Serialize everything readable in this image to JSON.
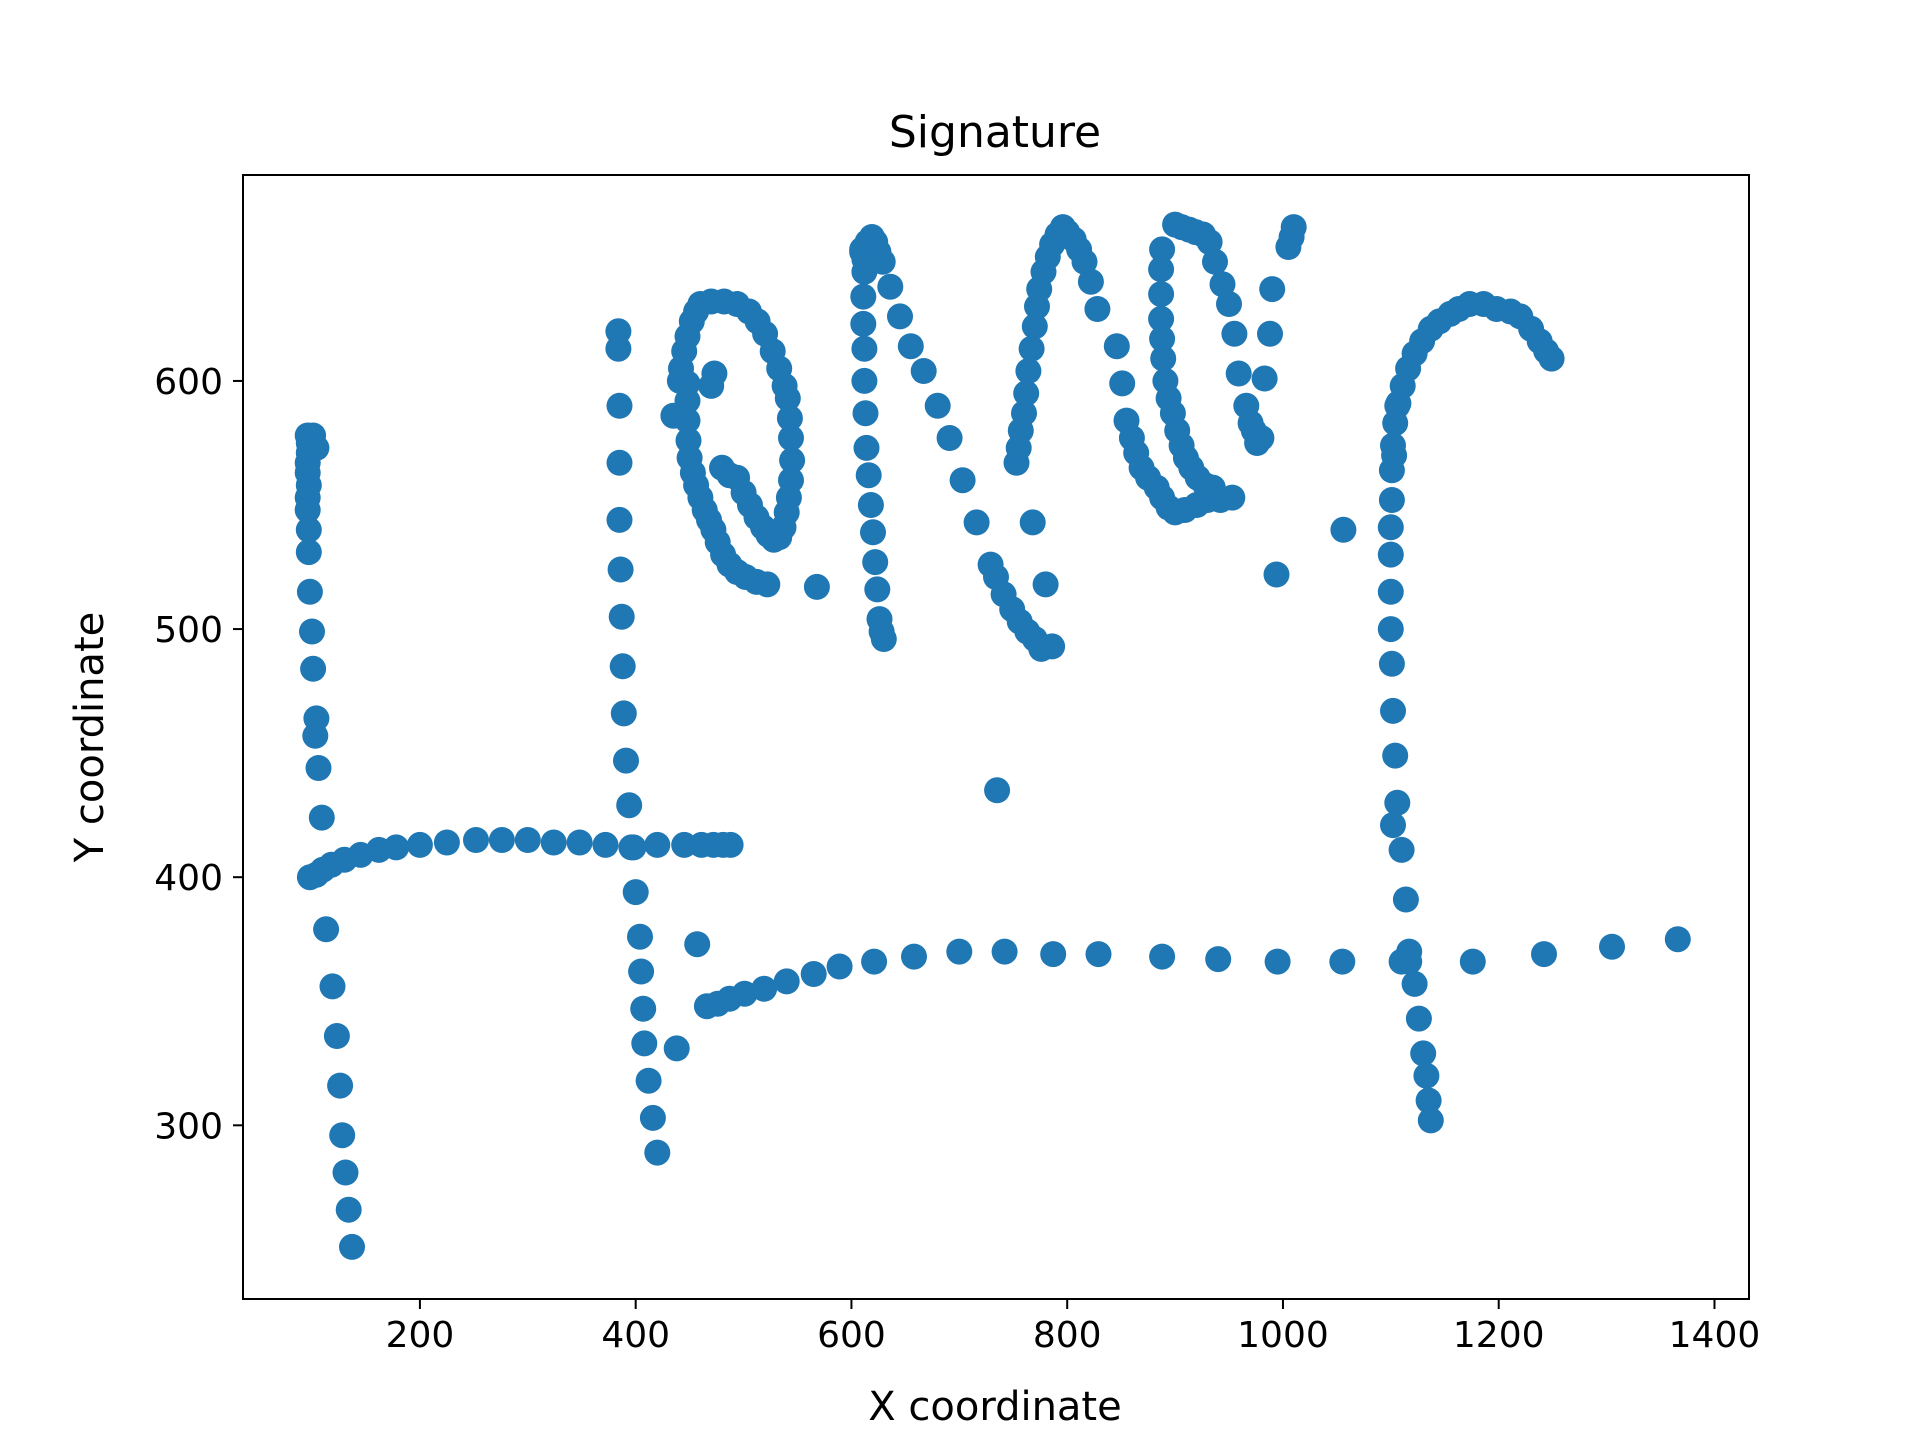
{
  "chart_data": {
    "type": "scatter",
    "title": "Signature",
    "xlabel": "X coordinate",
    "ylabel": "Y coordinate",
    "xlim": [
      36,
      1432
    ],
    "ylim": [
      230,
      683
    ],
    "xticks": [
      200,
      400,
      600,
      800,
      1000,
      1200,
      1400
    ],
    "yticks": [
      300,
      400,
      500,
      600
    ],
    "grid": false,
    "legend": false,
    "marker_color": "#1f77b4",
    "series": [
      {
        "values": [
          [
            96,
            578
          ],
          [
            97,
            575
          ],
          [
            97,
            571
          ],
          [
            96,
            567
          ],
          [
            96,
            563
          ],
          [
            97,
            558
          ],
          [
            96,
            553
          ],
          [
            96,
            548
          ],
          [
            97,
            540
          ],
          [
            97,
            531
          ],
          [
            98,
            515
          ],
          [
            100,
            499
          ],
          [
            101,
            484
          ],
          [
            103,
            457
          ],
          [
            104,
            464
          ],
          [
            106,
            444
          ],
          [
            109,
            424
          ],
          [
            113,
            379
          ],
          [
            119,
            356
          ],
          [
            123,
            336
          ],
          [
            126,
            316
          ],
          [
            128,
            296
          ],
          [
            131,
            281
          ],
          [
            134,
            266
          ],
          [
            137,
            251
          ],
          [
            98,
            400
          ],
          [
            104,
            401
          ],
          [
            110,
            403
          ],
          [
            118,
            405
          ],
          [
            130,
            407
          ],
          [
            145,
            409
          ],
          [
            162,
            411
          ],
          [
            178,
            412
          ],
          [
            200,
            413
          ],
          [
            225,
            414
          ],
          [
            252,
            415
          ],
          [
            276,
            415
          ],
          [
            300,
            415
          ],
          [
            324,
            414
          ],
          [
            348,
            414
          ],
          [
            372,
            413
          ],
          [
            396,
            412
          ],
          [
            420,
            413
          ],
          [
            445,
            413
          ],
          [
            461,
            413
          ],
          [
            472,
            413
          ],
          [
            481,
            413
          ],
          [
            488,
            413
          ],
          [
            101,
            578
          ],
          [
            104,
            573
          ],
          [
            384,
            620
          ],
          [
            384,
            613
          ],
          [
            385,
            590
          ],
          [
            385,
            567
          ],
          [
            385,
            544
          ],
          [
            386,
            524
          ],
          [
            387,
            505
          ],
          [
            388,
            485
          ],
          [
            389,
            466
          ],
          [
            391,
            447
          ],
          [
            394,
            429
          ],
          [
            398,
            412
          ],
          [
            400,
            394
          ],
          [
            404,
            376
          ],
          [
            405,
            362
          ],
          [
            407,
            347
          ],
          [
            408,
            333
          ],
          [
            412,
            318
          ],
          [
            416,
            303
          ],
          [
            420,
            289
          ],
          [
            435,
            586
          ],
          [
            438,
            331
          ],
          [
            457,
            373
          ],
          [
            466,
            348
          ],
          [
            476,
            349
          ],
          [
            487,
            351
          ],
          [
            501,
            353
          ],
          [
            519,
            355
          ],
          [
            540,
            358
          ],
          [
            565,
            361
          ],
          [
            589,
            364
          ],
          [
            621,
            366
          ],
          [
            658,
            368
          ],
          [
            700,
            370
          ],
          [
            742,
            370
          ],
          [
            787,
            369
          ],
          [
            829,
            369
          ],
          [
            888,
            368
          ],
          [
            940,
            367
          ],
          [
            995,
            366
          ],
          [
            1055,
            366
          ],
          [
            1117,
            366
          ],
          [
            1176,
            366
          ],
          [
            1242,
            369
          ],
          [
            1305,
            372
          ],
          [
            1366,
            375
          ],
          [
            441,
            600
          ],
          [
            442,
            605
          ],
          [
            445,
            612
          ],
          [
            448,
            618
          ],
          [
            452,
            624
          ],
          [
            456,
            628
          ],
          [
            460,
            631
          ],
          [
            470,
            632
          ],
          [
            482,
            632
          ],
          [
            494,
            631
          ],
          [
            505,
            628
          ],
          [
            513,
            624
          ],
          [
            520,
            619
          ],
          [
            527,
            612
          ],
          [
            533,
            605
          ],
          [
            538,
            598
          ],
          [
            541,
            593
          ],
          [
            543,
            585
          ],
          [
            544,
            577
          ],
          [
            545,
            568
          ],
          [
            544,
            560
          ],
          [
            542,
            553
          ],
          [
            540,
            547
          ],
          [
            537,
            541
          ],
          [
            533,
            537
          ],
          [
            528,
            536
          ],
          [
            523,
            538
          ],
          [
            518,
            541
          ],
          [
            512,
            545
          ],
          [
            506,
            550
          ],
          [
            500,
            555
          ],
          [
            494,
            561
          ],
          [
            487,
            562
          ],
          [
            480,
            565
          ],
          [
            448,
            599
          ],
          [
            448,
            592
          ],
          [
            448,
            584
          ],
          [
            449,
            576
          ],
          [
            450,
            569
          ],
          [
            453,
            563
          ],
          [
            456,
            558
          ],
          [
            460,
            553
          ],
          [
            464,
            548
          ],
          [
            468,
            544
          ],
          [
            472,
            540
          ],
          [
            476,
            535
          ],
          [
            481,
            530
          ],
          [
            487,
            526
          ],
          [
            494,
            523
          ],
          [
            502,
            521
          ],
          [
            512,
            519
          ],
          [
            522,
            518
          ],
          [
            568,
            517
          ],
          [
            473,
            603
          ],
          [
            470,
            598
          ],
          [
            610,
            653
          ],
          [
            615,
            656
          ],
          [
            619,
            658
          ],
          [
            622,
            656
          ],
          [
            625,
            652
          ],
          [
            629,
            648
          ],
          [
            636,
            638
          ],
          [
            645,
            626
          ],
          [
            655,
            614
          ],
          [
            667,
            604
          ],
          [
            680,
            590
          ],
          [
            691,
            577
          ],
          [
            703,
            560
          ],
          [
            716,
            543
          ],
          [
            612,
            644
          ],
          [
            611,
            634
          ],
          [
            611,
            623
          ],
          [
            612,
            613
          ],
          [
            612,
            600
          ],
          [
            613,
            587
          ],
          [
            614,
            573
          ],
          [
            616,
            562
          ],
          [
            618,
            550
          ],
          [
            620,
            539
          ],
          [
            622,
            527
          ],
          [
            624,
            516
          ],
          [
            626,
            504
          ],
          [
            628,
            499
          ],
          [
            630,
            496
          ],
          [
            610,
            652
          ],
          [
            612,
            649
          ],
          [
            729,
            526
          ],
          [
            734,
            521
          ],
          [
            741,
            514
          ],
          [
            749,
            508
          ],
          [
            756,
            503
          ],
          [
            763,
            499
          ],
          [
            770,
            496
          ],
          [
            776,
            492
          ],
          [
            786,
            493
          ],
          [
            753,
            567
          ],
          [
            755,
            573
          ],
          [
            757,
            580
          ],
          [
            760,
            587
          ],
          [
            762,
            595
          ],
          [
            764,
            604
          ],
          [
            767,
            613
          ],
          [
            770,
            622
          ],
          [
            772,
            630
          ],
          [
            774,
            637
          ],
          [
            778,
            644
          ],
          [
            782,
            650
          ],
          [
            786,
            655
          ],
          [
            791,
            659
          ],
          [
            796,
            662
          ],
          [
            800,
            660
          ],
          [
            806,
            657
          ],
          [
            811,
            653
          ],
          [
            816,
            648
          ],
          [
            822,
            640
          ],
          [
            828,
            629
          ],
          [
            735,
            435
          ],
          [
            768,
            543
          ],
          [
            780,
            518
          ],
          [
            846,
            614
          ],
          [
            851,
            599
          ],
          [
            855,
            584
          ],
          [
            860,
            577
          ],
          [
            864,
            571
          ],
          [
            869,
            565
          ],
          [
            875,
            561
          ],
          [
            883,
            557
          ],
          [
            888,
            553
          ],
          [
            894,
            549
          ],
          [
            900,
            547
          ],
          [
            909,
            548
          ],
          [
            920,
            550
          ],
          [
            930,
            552
          ],
          [
            942,
            552
          ],
          [
            953,
            553
          ],
          [
            888,
            653
          ],
          [
            887,
            645
          ],
          [
            887,
            635
          ],
          [
            887,
            625
          ],
          [
            888,
            617
          ],
          [
            889,
            609
          ],
          [
            891,
            600
          ],
          [
            894,
            593
          ],
          [
            898,
            587
          ],
          [
            902,
            580
          ],
          [
            906,
            574
          ],
          [
            910,
            569
          ],
          [
            915,
            565
          ],
          [
            921,
            561
          ],
          [
            928,
            558
          ],
          [
            935,
            557
          ],
          [
            900,
            663
          ],
          [
            906,
            662
          ],
          [
            913,
            661
          ],
          [
            919,
            660
          ],
          [
            926,
            659
          ],
          [
            932,
            656
          ],
          [
            937,
            648
          ],
          [
            944,
            639
          ],
          [
            950,
            631
          ],
          [
            955,
            619
          ],
          [
            959,
            603
          ],
          [
            966,
            590
          ],
          [
            970,
            583
          ],
          [
            973,
            580
          ],
          [
            976,
            575
          ],
          [
            980,
            577
          ],
          [
            990,
            637
          ],
          [
            988,
            619
          ],
          [
            983,
            601
          ],
          [
            994,
            522
          ],
          [
            1008,
            658
          ],
          [
            1010,
            662
          ],
          [
            1005,
            654
          ],
          [
            1056,
            540
          ],
          [
            1100,
            541
          ],
          [
            1101,
            552
          ],
          [
            1101,
            564
          ],
          [
            1102,
            574
          ],
          [
            1104,
            583
          ],
          [
            1107,
            591
          ],
          [
            1111,
            598
          ],
          [
            1116,
            605
          ],
          [
            1122,
            611
          ],
          [
            1129,
            616
          ],
          [
            1137,
            621
          ],
          [
            1145,
            624
          ],
          [
            1155,
            627
          ],
          [
            1163,
            629
          ],
          [
            1173,
            631
          ],
          [
            1186,
            631
          ],
          [
            1198,
            629
          ],
          [
            1211,
            628
          ],
          [
            1220,
            626
          ],
          [
            1230,
            621
          ],
          [
            1238,
            616
          ],
          [
            1244,
            612
          ],
          [
            1249,
            609
          ],
          [
            1100,
            530
          ],
          [
            1100,
            515
          ],
          [
            1100,
            500
          ],
          [
            1101,
            486
          ],
          [
            1102,
            467
          ],
          [
            1104,
            449
          ],
          [
            1106,
            430
          ],
          [
            1102,
            421
          ],
          [
            1110,
            411
          ],
          [
            1114,
            391
          ],
          [
            1117,
            370
          ],
          [
            1110,
            366
          ],
          [
            1122,
            357
          ],
          [
            1126,
            343
          ],
          [
            1130,
            329
          ],
          [
            1133,
            320
          ],
          [
            1135,
            310
          ],
          [
            1137,
            302
          ],
          [
            1103,
            570
          ],
          [
            1106,
            590
          ]
        ]
      }
    ]
  }
}
